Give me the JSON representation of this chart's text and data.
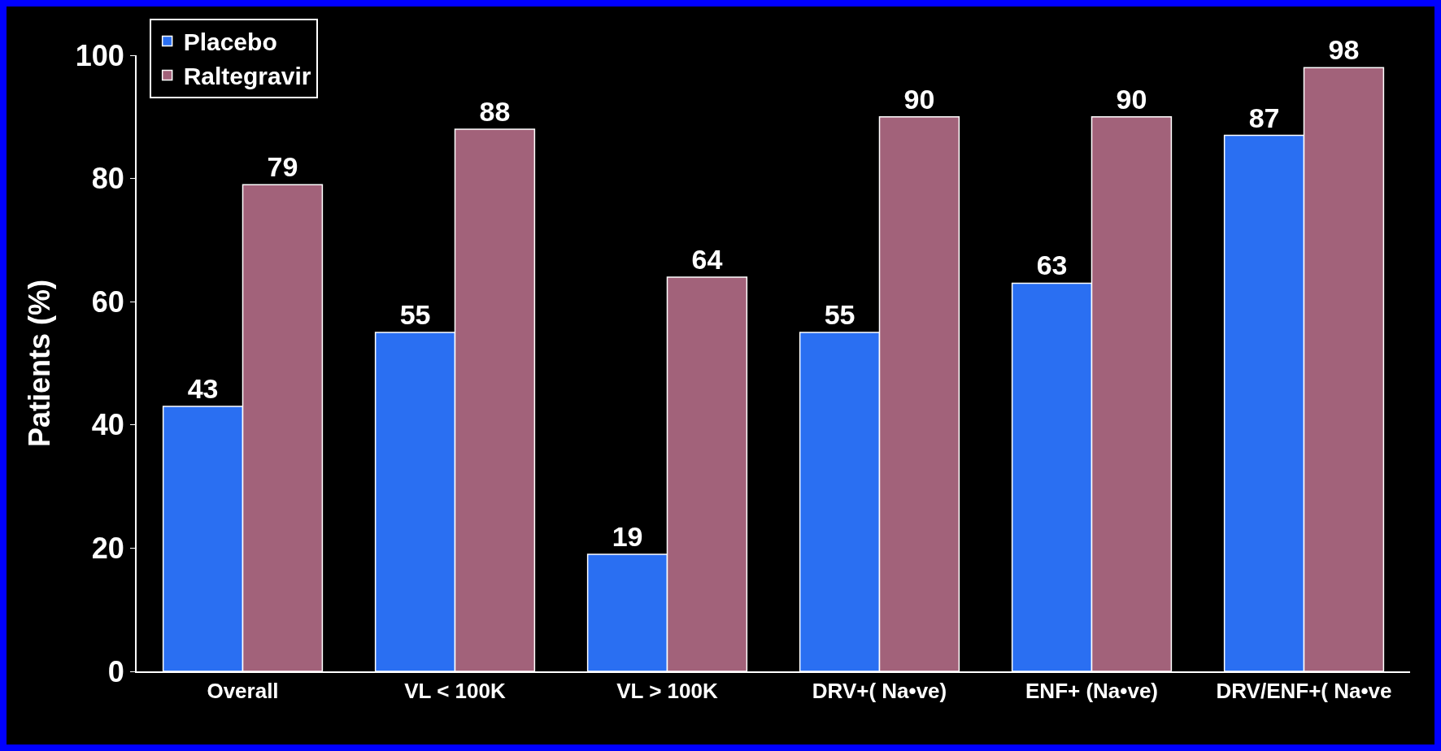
{
  "chart_data": {
    "type": "bar",
    "ylabel": "Patients (%)",
    "categories": [
      "Overall",
      "VL < 100K",
      "VL > 100K",
      "DRV+( Na•ve)",
      "ENF+ (Na•ve)",
      "DRV/ENF+( Na•ve"
    ],
    "series": [
      {
        "name": "Placebo",
        "color": "#2a6ff2",
        "values": [
          43,
          55,
          19,
          55,
          63,
          87
        ]
      },
      {
        "name": "Raltegravir",
        "color": "#a2627a",
        "values": [
          79,
          88,
          64,
          90,
          90,
          98
        ]
      }
    ],
    "ylim": [
      0,
      100
    ],
    "yticks": [
      0,
      20,
      40,
      60,
      80,
      100
    ],
    "grid": false,
    "legend": "top left",
    "data_labels": true
  }
}
